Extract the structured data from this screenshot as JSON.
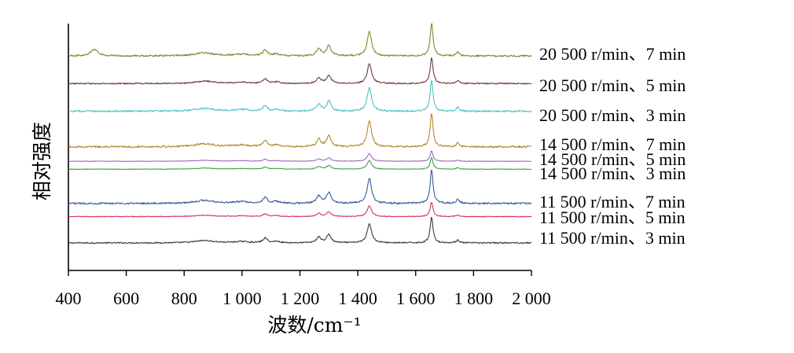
{
  "chart_data": {
    "type": "line",
    "subtype": "stacked-offset-spectra",
    "xlabel": "波数/cm⁻¹",
    "ylabel": "相对强度",
    "xlim": [
      400,
      2000
    ],
    "xticks": [
      400,
      600,
      800,
      1000,
      1200,
      1400,
      1600,
      1800,
      2000
    ],
    "xtick_labels": [
      "400",
      "600",
      "800",
      "1 000",
      "1 200",
      "1 400",
      "1 600",
      "1 800",
      "2 000"
    ],
    "y_ticks_shown": false,
    "grid": false,
    "legend": "labels at right end of each trace",
    "series": [
      {
        "name": "11 500 r/min、3 min",
        "color": "#3a3a3a",
        "offset": 0.0,
        "scale": 1.0
      },
      {
        "name": "11 500 r/min、5 min",
        "color": "#d2344f",
        "offset": 1.0,
        "scale": 0.55
      },
      {
        "name": "11 500 r/min、7 min",
        "color": "#3a5b9a",
        "offset": 1.5,
        "scale": 1.3
      },
      {
        "name": "14 500 r/min、3 min",
        "color": "#3f9e4d",
        "offset": 2.8,
        "scale": 0.45
      },
      {
        "name": "14 500 r/min、5 min",
        "color": "#9a6bc0",
        "offset": 3.1,
        "scale": 0.4
      },
      {
        "name": "14 500 r/min、7 min",
        "color": "#b08a2a",
        "offset": 3.65,
        "scale": 1.3
      },
      {
        "name": "20 500 r/min、3 min",
        "color": "#4fc3c0",
        "offset": 5.0,
        "scale": 1.2
      },
      {
        "name": "20 500 r/min、5 min",
        "color": "#6a3a4a",
        "offset": 6.05,
        "scale": 1.0
      },
      {
        "name": "20 500 r/min、7 min",
        "color": "#7c8a2e",
        "offset": 7.1,
        "scale": 1.25
      }
    ],
    "peaks": [
      {
        "x": 1080,
        "rel_height": 0.18
      },
      {
        "x": 1265,
        "rel_height": 0.22
      },
      {
        "x": 1300,
        "rel_height": 0.32
      },
      {
        "x": 1440,
        "rel_height": 0.75
      },
      {
        "x": 1655,
        "rel_height": 1.0
      },
      {
        "x": 1745,
        "rel_height": 0.12
      }
    ]
  }
}
